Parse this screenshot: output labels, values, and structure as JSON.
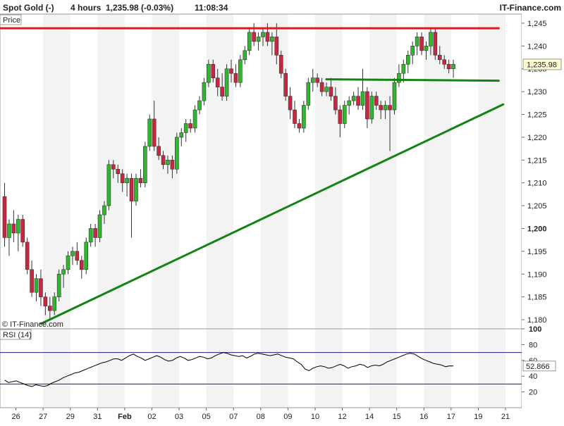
{
  "header": {
    "instrument": "Spot Gold (-)",
    "interval": "4 hours",
    "quote": "1,235.98 (-0.03%)",
    "time": "11:08:34",
    "brand": "IT-Finance.com"
  },
  "price_panel": {
    "label": "Price",
    "watermark": "© IT-Finance.com",
    "last_price_label": "1,235.98"
  },
  "rsi_panel": {
    "label": "RSI (14)",
    "last_value_label": "52.866"
  },
  "colors": {
    "bull": "#2db82d",
    "bear": "#c9263f",
    "resistance": "#e8141e",
    "support": "#138313",
    "rsi_line": "#000000",
    "rsi_bands": "#1a1a8c",
    "axis_text": "#222222",
    "stripe": "#f3f3f3"
  },
  "chart_data": [
    {
      "type": "candlestick",
      "title": "Spot Gold (-) 4 hours",
      "ylim": [
        1178,
        1247
      ],
      "y_ticks": [
        1180,
        1185,
        1190,
        1195,
        1200,
        1205,
        1210,
        1215,
        1220,
        1225,
        1230,
        1235,
        1240,
        1245
      ],
      "y_tick_labels": [
        "1,180",
        "1,185",
        "1,190",
        "1,195",
        "1,200",
        "1,205",
        "1,210",
        "1,215",
        "1,220",
        "1,225",
        "1,230",
        "1,235",
        "1,240",
        "1,245"
      ],
      "bold_tick": 1200,
      "x_labels": [
        {
          "label": "26",
          "bar": 3
        },
        {
          "label": "27",
          "bar": 9
        },
        {
          "label": "29",
          "bar": 15
        },
        {
          "label": "31",
          "bar": 21
        },
        {
          "label": "Feb",
          "bar": 27
        },
        {
          "label": "02",
          "bar": 33
        },
        {
          "label": "03",
          "bar": 39
        },
        {
          "label": "05",
          "bar": 45
        },
        {
          "label": "07",
          "bar": 51
        },
        {
          "label": "08",
          "bar": 57
        },
        {
          "label": "09",
          "bar": 63
        },
        {
          "label": "10",
          "bar": 69
        },
        {
          "label": "12",
          "bar": 75
        },
        {
          "label": "14",
          "bar": 81
        },
        {
          "label": "15",
          "bar": 87
        },
        {
          "label": "16",
          "bar": 93
        },
        {
          "label": "17",
          "bar": 99
        },
        {
          "label": "19",
          "bar": 105
        },
        {
          "label": "21",
          "bar": 111
        }
      ],
      "candles": [
        [
          1207,
          1210,
          1196,
          1198
        ],
        [
          1198,
          1202,
          1194,
          1201
        ],
        [
          1201,
          1204,
          1197,
          1199
        ],
        [
          1199,
          1203,
          1195,
          1202
        ],
        [
          1202,
          1203,
          1196,
          1197
        ],
        [
          1197,
          1198,
          1190,
          1191
        ],
        [
          1191,
          1193,
          1185,
          1186
        ],
        [
          1186,
          1190,
          1184,
          1189
        ],
        [
          1189,
          1191,
          1183,
          1185
        ],
        [
          1185,
          1186,
          1181,
          1183
        ],
        [
          1183,
          1185,
          1180,
          1182
        ],
        [
          1182,
          1186,
          1181,
          1185
        ],
        [
          1185,
          1191,
          1184,
          1190
        ],
        [
          1190,
          1192,
          1187,
          1191
        ],
        [
          1191,
          1195,
          1190,
          1194
        ],
        [
          1194,
          1196,
          1192,
          1195
        ],
        [
          1195,
          1197,
          1192,
          1193
        ],
        [
          1193,
          1194,
          1189,
          1191
        ],
        [
          1191,
          1198,
          1190,
          1197
        ],
        [
          1197,
          1201,
          1196,
          1200
        ],
        [
          1200,
          1201,
          1196,
          1198
        ],
        [
          1198,
          1204,
          1197,
          1203
        ],
        [
          1203,
          1206,
          1201,
          1205
        ],
        [
          1205,
          1215,
          1204,
          1214
        ],
        [
          1214,
          1215,
          1211,
          1213
        ],
        [
          1213,
          1214,
          1210,
          1212
        ],
        [
          1212,
          1213,
          1208,
          1210
        ],
        [
          1210,
          1212,
          1207,
          1211
        ],
        [
          1211,
          1212,
          1198,
          1206
        ],
        [
          1206,
          1212,
          1205,
          1211
        ],
        [
          1211,
          1213,
          1209,
          1210
        ],
        [
          1210,
          1219,
          1209,
          1218
        ],
        [
          1218,
          1225,
          1217,
          1224
        ],
        [
          1224,
          1228,
          1217,
          1218
        ],
        [
          1218,
          1220,
          1215,
          1216
        ],
        [
          1216,
          1217,
          1213,
          1214
        ],
        [
          1214,
          1216,
          1212,
          1215
        ],
        [
          1215,
          1216,
          1211,
          1213
        ],
        [
          1213,
          1221,
          1212,
          1220
        ],
        [
          1220,
          1222,
          1218,
          1221
        ],
        [
          1221,
          1224,
          1219,
          1223
        ],
        [
          1223,
          1224,
          1221,
          1222
        ],
        [
          1222,
          1227,
          1221,
          1226
        ],
        [
          1226,
          1229,
          1225,
          1228
        ],
        [
          1228,
          1233,
          1227,
          1232
        ],
        [
          1232,
          1237,
          1231,
          1236
        ],
        [
          1236,
          1237,
          1232,
          1233
        ],
        [
          1233,
          1235,
          1229,
          1231
        ],
        [
          1231,
          1234,
          1228,
          1229
        ],
        [
          1229,
          1236,
          1228,
          1235
        ],
        [
          1235,
          1237,
          1232,
          1234
        ],
        [
          1234,
          1236,
          1231,
          1232
        ],
        [
          1232,
          1238,
          1231,
          1237
        ],
        [
          1237,
          1240,
          1236,
          1239
        ],
        [
          1239,
          1244,
          1238,
          1243
        ],
        [
          1243,
          1245,
          1240,
          1241
        ],
        [
          1241,
          1243,
          1239,
          1242
        ],
        [
          1242,
          1244,
          1240,
          1243
        ],
        [
          1243,
          1245,
          1240,
          1241
        ],
        [
          1241,
          1243,
          1238,
          1242
        ],
        [
          1242,
          1245,
          1236,
          1238
        ],
        [
          1238,
          1239,
          1233,
          1234
        ],
        [
          1234,
          1235,
          1228,
          1229
        ],
        [
          1229,
          1231,
          1224,
          1226
        ],
        [
          1226,
          1228,
          1222,
          1223
        ],
        [
          1223,
          1224,
          1221,
          1222
        ],
        [
          1222,
          1228,
          1221,
          1227
        ],
        [
          1227,
          1233,
          1226,
          1232
        ],
        [
          1232,
          1235,
          1230,
          1233
        ],
        [
          1233,
          1234,
          1231,
          1232
        ],
        [
          1232,
          1233,
          1229,
          1230
        ],
        [
          1230,
          1232,
          1229,
          1231
        ],
        [
          1231,
          1233,
          1228,
          1229
        ],
        [
          1229,
          1231,
          1225,
          1226
        ],
        [
          1226,
          1227,
          1220,
          1223
        ],
        [
          1223,
          1228,
          1222,
          1227
        ],
        [
          1227,
          1229,
          1225,
          1228
        ],
        [
          1228,
          1230,
          1227,
          1229
        ],
        [
          1229,
          1231,
          1226,
          1227
        ],
        [
          1227,
          1235,
          1226,
          1230
        ],
        [
          1230,
          1231,
          1222,
          1224
        ],
        [
          1224,
          1230,
          1223,
          1229
        ],
        [
          1229,
          1230,
          1226,
          1227
        ],
        [
          1227,
          1228,
          1224,
          1226
        ],
        [
          1226,
          1228,
          1224,
          1227
        ],
        [
          1227,
          1229,
          1217,
          1226
        ],
        [
          1226,
          1233,
          1225,
          1232
        ],
        [
          1232,
          1236,
          1231,
          1234
        ],
        [
          1234,
          1237,
          1232,
          1236
        ],
        [
          1236,
          1239,
          1234,
          1238
        ],
        [
          1238,
          1241,
          1236,
          1240
        ],
        [
          1240,
          1243,
          1238,
          1242
        ],
        [
          1242,
          1243,
          1238,
          1239
        ],
        [
          1239,
          1241,
          1237,
          1240
        ],
        [
          1240,
          1244,
          1238,
          1243
        ],
        [
          1243,
          1244,
          1237,
          1238
        ],
        [
          1238,
          1240,
          1236,
          1237
        ],
        [
          1237,
          1238,
          1235,
          1236
        ],
        [
          1236,
          1237,
          1234,
          1235
        ],
        [
          1235,
          1237,
          1233,
          1236
        ]
      ],
      "trendlines": [
        {
          "name": "resistance",
          "x0": -2,
          "y0": 1243.9,
          "x1": 109,
          "y1": 1243.9,
          "color": "resistance"
        },
        {
          "name": "support-horizontal",
          "x0": 71,
          "y0": 1232.7,
          "x1": 109,
          "y1": 1232.4,
          "color": "support"
        },
        {
          "name": "rising-trendline",
          "x0": 8,
          "y0": 1179.1,
          "x1": 110,
          "y1": 1227.2,
          "color": "support"
        }
      ],
      "last_price": 1235.98
    },
    {
      "type": "line",
      "title": "RSI (14)",
      "ylim": [
        0,
        100
      ],
      "y_ticks": [
        20,
        40,
        60,
        80,
        100
      ],
      "bold_ticks": [
        100
      ],
      "bands": [
        30,
        70
      ],
      "values": [
        35,
        32,
        33,
        34,
        32,
        30,
        28,
        27,
        29,
        28,
        27,
        28,
        31,
        33,
        35,
        38,
        40,
        42,
        44,
        45,
        47,
        49,
        51,
        53,
        55,
        57,
        58,
        60,
        62,
        62,
        60,
        63,
        66,
        68,
        65,
        63,
        60,
        62,
        64,
        66,
        64,
        61,
        59,
        60,
        63,
        65,
        63,
        60,
        61,
        63,
        65,
        64,
        62,
        63,
        66,
        68,
        70,
        69,
        67,
        66,
        65,
        66,
        63,
        65,
        68,
        69,
        68,
        67,
        66,
        67,
        68,
        66,
        64,
        63,
        62,
        58,
        55,
        49,
        47,
        50,
        52,
        53,
        52,
        50,
        51,
        53,
        55,
        53,
        50,
        52,
        53,
        55,
        54,
        51,
        53,
        54,
        53,
        55,
        58,
        60,
        62,
        64,
        66,
        68,
        69,
        68,
        65,
        62,
        60,
        58,
        56,
        55,
        54,
        52,
        53,
        52.866
      ],
      "last_value": 52.866
    }
  ]
}
